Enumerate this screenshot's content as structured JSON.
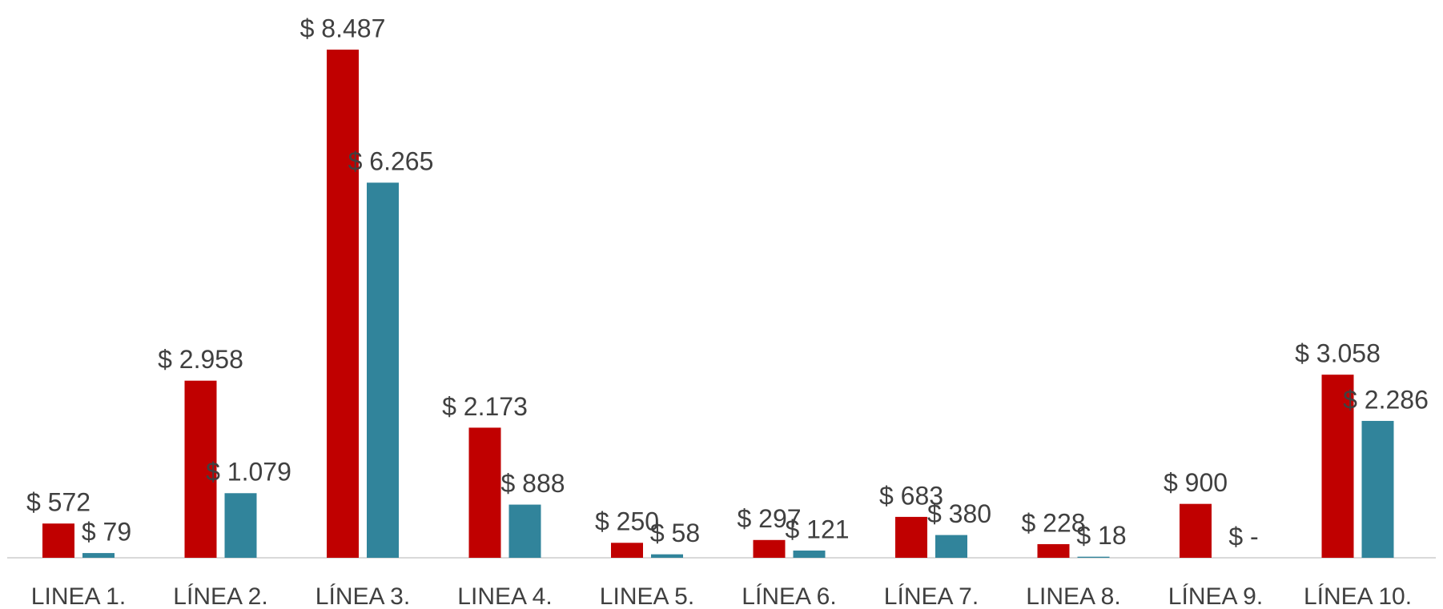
{
  "chart_data": {
    "type": "bar",
    "categories": [
      "LINEA 1.",
      "LÍNEA 2.",
      "LÍNEA 3.",
      "LINEA 4.",
      "LINEA 5.",
      "LÍNEA 6.",
      "LÍNEA 7.",
      "LINEA 8.",
      "LÍNEA 9.",
      "LÍNEA 10."
    ],
    "series": [
      {
        "color": "#c00000",
        "values": [
          572,
          2958,
          8487,
          2173,
          250,
          297,
          683,
          228,
          900,
          3058
        ],
        "value_labels": [
          "$ 572",
          "$ 2.958",
          "$ 8.487",
          "$ 2.173",
          "$ 250",
          "$ 297",
          "$ 683",
          "$ 228",
          "$ 900",
          "$ 3.058"
        ]
      },
      {
        "color": "#31849b",
        "values": [
          79,
          1079,
          6265,
          888,
          58,
          121,
          380,
          18,
          0,
          2286
        ],
        "value_labels": [
          "$ 79",
          "$ 1.079",
          "$ 6.265",
          "$ 888",
          "$ 58",
          "$ 121",
          "$ 380",
          "$ 18",
          "$ -",
          "$ 2.286"
        ]
      }
    ]
  }
}
